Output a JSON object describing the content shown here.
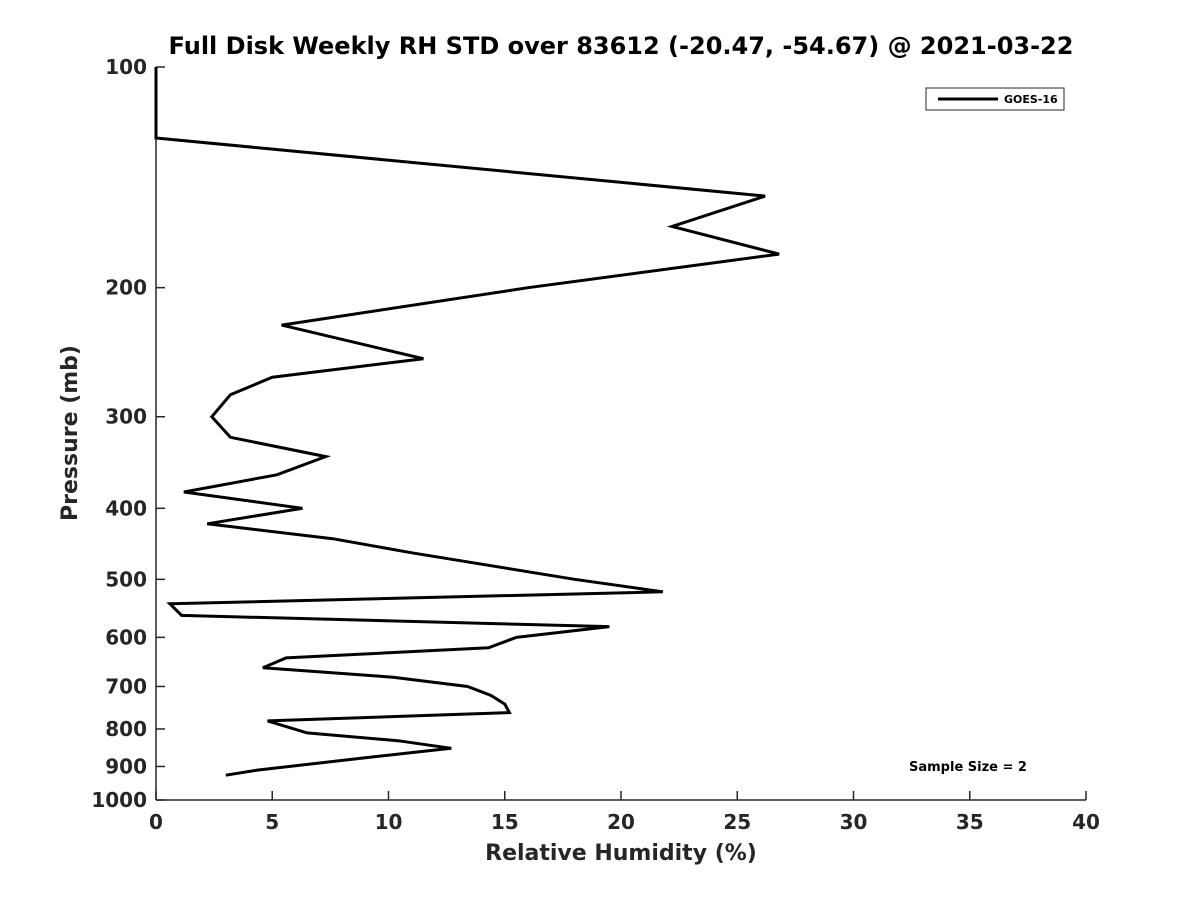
{
  "chart_data": {
    "type": "line",
    "title": "Full Disk Weekly RH STD over 83612 (-20.47, -54.67) @ 2021-03-22",
    "xlabel": "Relative Humidity (%)",
    "ylabel": "Pressure (mb)",
    "xlim": [
      0,
      40
    ],
    "ylim": [
      100,
      1000
    ],
    "y_scale": "log",
    "y_reversed": true,
    "x_ticks": [
      0,
      5,
      10,
      15,
      20,
      25,
      30,
      35,
      40
    ],
    "x_tick_labels": [
      "0",
      "5",
      "10",
      "15",
      "20",
      "25",
      "30",
      "35",
      "40"
    ],
    "y_ticks": [
      100,
      200,
      300,
      400,
      500,
      600,
      700,
      800,
      900,
      1000
    ],
    "y_tick_labels": [
      "100",
      "200",
      "300",
      "400",
      "500",
      "600",
      "700",
      "800",
      "900",
      "1000"
    ],
    "grid": false,
    "legend": {
      "position": "top-right",
      "entries": [
        "GOES-16"
      ]
    },
    "annotation": "Sample Size = 2",
    "series": [
      {
        "name": "GOES-16",
        "color": "#000000",
        "points": [
          {
            "rh": 0.0,
            "p": 100
          },
          {
            "rh": 0.0,
            "p": 125
          },
          {
            "rh": 26.2,
            "p": 150
          },
          {
            "rh": 22.2,
            "p": 165
          },
          {
            "rh": 26.8,
            "p": 180
          },
          {
            "rh": 16.0,
            "p": 200
          },
          {
            "rh": 5.4,
            "p": 225
          },
          {
            "rh": 11.5,
            "p": 250
          },
          {
            "rh": 5.0,
            "p": 265
          },
          {
            "rh": 3.2,
            "p": 280
          },
          {
            "rh": 2.4,
            "p": 300
          },
          {
            "rh": 3.2,
            "p": 320
          },
          {
            "rh": 7.3,
            "p": 340
          },
          {
            "rh": 5.2,
            "p": 360
          },
          {
            "rh": 1.2,
            "p": 380
          },
          {
            "rh": 6.3,
            "p": 400
          },
          {
            "rh": 2.2,
            "p": 420
          },
          {
            "rh": 7.6,
            "p": 440
          },
          {
            "rh": 11.0,
            "p": 460
          },
          {
            "rh": 18.0,
            "p": 500
          },
          {
            "rh": 21.8,
            "p": 520
          },
          {
            "rh": 0.6,
            "p": 540
          },
          {
            "rh": 1.1,
            "p": 560
          },
          {
            "rh": 19.5,
            "p": 580
          },
          {
            "rh": 15.5,
            "p": 600
          },
          {
            "rh": 14.3,
            "p": 620
          },
          {
            "rh": 5.6,
            "p": 640
          },
          {
            "rh": 4.6,
            "p": 660
          },
          {
            "rh": 10.2,
            "p": 680
          },
          {
            "rh": 13.4,
            "p": 700
          },
          {
            "rh": 14.4,
            "p": 720
          },
          {
            "rh": 15.0,
            "p": 740
          },
          {
            "rh": 15.2,
            "p": 760
          },
          {
            "rh": 4.8,
            "p": 780
          },
          {
            "rh": 6.5,
            "p": 810
          },
          {
            "rh": 10.4,
            "p": 830
          },
          {
            "rh": 12.7,
            "p": 850
          },
          {
            "rh": 9.1,
            "p": 875
          },
          {
            "rh": 4.4,
            "p": 910
          },
          {
            "rh": 3.0,
            "p": 925
          }
        ]
      }
    ]
  }
}
